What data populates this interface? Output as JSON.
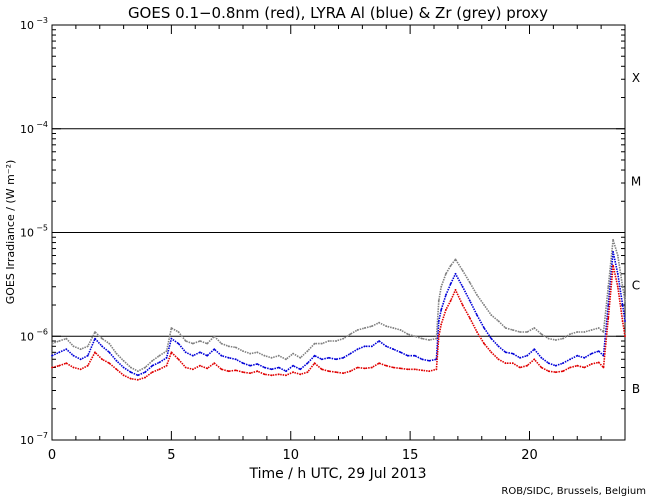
{
  "chart_data": {
    "type": "line",
    "title": "GOES 0.1−0.8nm (red), LYRA Al (blue) & Zr (grey) proxy",
    "xlabel": "Time / h UTC, 29 Jul 2013",
    "ylabel": "GOES Irradiance / (W m⁻²)",
    "xlim": [
      0,
      24
    ],
    "ylim_log10": [
      -7,
      -3
    ],
    "x_ticks": [
      0,
      5,
      10,
      15,
      20
    ],
    "x_tick_labels": [
      "0",
      "5",
      "10",
      "15",
      "20"
    ],
    "y_ticks_log10": [
      -7,
      -6,
      -5,
      -4,
      -3
    ],
    "y_tick_bases": [
      "10",
      "10",
      "10",
      "10",
      "10"
    ],
    "y_tick_exponents": [
      "−7",
      "−6",
      "−5",
      "−4",
      "−3"
    ],
    "flare_thresholds_log10": [
      -6,
      -5,
      -4
    ],
    "flare_classes": [
      {
        "label": "B",
        "center_log10": -6.5
      },
      {
        "label": "C",
        "center_log10": -5.5
      },
      {
        "label": "M",
        "center_log10": -4.5
      },
      {
        "label": "X",
        "center_log10": -3.5
      }
    ],
    "series": [
      {
        "name": "GOES 0.1-0.8nm",
        "color": "#e00000",
        "x": [
          0,
          0.3,
          0.6,
          0.9,
          1.2,
          1.5,
          1.8,
          2.1,
          2.4,
          2.7,
          3.0,
          3.3,
          3.6,
          3.9,
          4.2,
          4.5,
          4.8,
          5.0,
          5.3,
          5.6,
          5.9,
          6.2,
          6.5,
          6.8,
          7.1,
          7.4,
          7.7,
          8.0,
          8.3,
          8.6,
          8.9,
          9.2,
          9.5,
          9.8,
          10.1,
          10.4,
          10.7,
          11.0,
          11.3,
          11.6,
          11.9,
          12.2,
          12.5,
          12.8,
          13.1,
          13.4,
          13.7,
          14.0,
          14.3,
          14.6,
          14.9,
          15.2,
          15.5,
          15.8,
          16.1,
          16.2,
          16.3,
          16.5,
          16.7,
          16.9,
          17.2,
          17.5,
          17.8,
          18.1,
          18.4,
          18.7,
          19.0,
          19.3,
          19.6,
          19.9,
          20.2,
          20.5,
          20.8,
          21.1,
          21.4,
          21.7,
          22.0,
          22.3,
          22.6,
          22.9,
          23.1,
          23.3,
          23.5,
          23.7,
          23.9,
          24.0
        ],
        "y": [
          5e-07,
          5.2e-07,
          5.5e-07,
          5e-07,
          4.8e-07,
          5.2e-07,
          7e-07,
          6e-07,
          5.5e-07,
          4.8e-07,
          4.2e-07,
          3.9e-07,
          3.8e-07,
          4e-07,
          4.5e-07,
          4.8e-07,
          5.2e-07,
          7e-07,
          6e-07,
          5e-07,
          4.8e-07,
          5.2e-07,
          4.9e-07,
          5.5e-07,
          4.8e-07,
          4.6e-07,
          4.7e-07,
          4.5e-07,
          4.4e-07,
          4.6e-07,
          4.3e-07,
          4.2e-07,
          4.3e-07,
          4.2e-07,
          4.5e-07,
          4.3e-07,
          4.5e-07,
          5.5e-07,
          4.8e-07,
          4.6e-07,
          4.5e-07,
          4.4e-07,
          4.6e-07,
          5e-07,
          4.9e-07,
          5e-07,
          5.5e-07,
          5.2e-07,
          5e-07,
          4.9e-07,
          4.8e-07,
          4.8e-07,
          4.7e-07,
          4.6e-07,
          4.8e-07,
          1e-06,
          1.3e-06,
          1.8e-06,
          2.2e-06,
          2.8e-06,
          2e-06,
          1.5e-06,
          1.1e-06,
          8.5e-07,
          7e-07,
          6e-07,
          5.5e-07,
          5.5e-07,
          5e-07,
          5.2e-07,
          6e-07,
          5e-07,
          4.6e-07,
          4.5e-07,
          4.6e-07,
          5e-07,
          5.2e-07,
          5e-07,
          5.4e-07,
          5.6e-07,
          5e-07,
          1.5e-06,
          4.8e-06,
          3e-06,
          1.4e-06,
          1e-06
        ]
      },
      {
        "name": "LYRA Al proxy",
        "color": "#0000d8",
        "x": [
          0,
          0.3,
          0.6,
          0.9,
          1.2,
          1.5,
          1.8,
          2.1,
          2.4,
          2.7,
          3.0,
          3.3,
          3.6,
          3.9,
          4.2,
          4.5,
          4.8,
          5.0,
          5.3,
          5.6,
          5.9,
          6.2,
          6.5,
          6.8,
          7.1,
          7.4,
          7.7,
          8.0,
          8.3,
          8.6,
          8.9,
          9.2,
          9.5,
          9.8,
          10.1,
          10.4,
          10.7,
          11.0,
          11.3,
          11.6,
          11.9,
          12.2,
          12.5,
          12.8,
          13.1,
          13.4,
          13.7,
          14.0,
          14.3,
          14.6,
          14.9,
          15.2,
          15.5,
          15.8,
          16.1,
          16.2,
          16.3,
          16.5,
          16.7,
          16.9,
          17.2,
          17.5,
          17.8,
          18.1,
          18.4,
          18.7,
          19.0,
          19.3,
          19.6,
          19.9,
          20.2,
          20.5,
          20.8,
          21.1,
          21.4,
          21.7,
          22.0,
          22.3,
          22.6,
          22.9,
          23.1,
          23.3,
          23.5,
          23.7,
          23.9,
          24.0
        ],
        "y": [
          6.5e-07,
          7e-07,
          7.5e-07,
          6.5e-07,
          6e-07,
          6.5e-07,
          9.5e-07,
          8e-07,
          7e-07,
          5.8e-07,
          5e-07,
          4.5e-07,
          4.2e-07,
          4.5e-07,
          5.2e-07,
          5.6e-07,
          6.2e-07,
          9.5e-07,
          8.5e-07,
          7e-07,
          6.5e-07,
          7e-07,
          6.5e-07,
          7.5e-07,
          6.5e-07,
          6.2e-07,
          6e-07,
          5.5e-07,
          5.2e-07,
          5.4e-07,
          5e-07,
          4.8e-07,
          5e-07,
          4.6e-07,
          5.2e-07,
          4.8e-07,
          5.5e-07,
          6.5e-07,
          6e-07,
          6.2e-07,
          6e-07,
          6.2e-07,
          6.8e-07,
          7.5e-07,
          8e-07,
          8e-07,
          9e-07,
          8e-07,
          7.5e-07,
          7e-07,
          6.5e-07,
          6.5e-07,
          6e-07,
          5.8e-07,
          6e-07,
          1.4e-06,
          1.8e-06,
          2.5e-06,
          3.2e-06,
          4e-06,
          3e-06,
          2.2e-06,
          1.6e-06,
          1.2e-06,
          9.5e-07,
          8e-07,
          7e-07,
          6.8e-07,
          6.2e-07,
          6.5e-07,
          7.5e-07,
          6.2e-07,
          5.5e-07,
          5.2e-07,
          5.5e-07,
          6e-07,
          6.5e-07,
          6.2e-07,
          6.8e-07,
          7.2e-07,
          6.5e-07,
          2e-06,
          6.5e-06,
          4e-06,
          2e-06,
          1.4e-06
        ]
      },
      {
        "name": "LYRA Zr proxy",
        "color": "#808080",
        "x": [
          0,
          0.3,
          0.6,
          0.9,
          1.2,
          1.5,
          1.8,
          2.1,
          2.4,
          2.7,
          3.0,
          3.3,
          3.6,
          3.9,
          4.2,
          4.5,
          4.8,
          5.0,
          5.3,
          5.6,
          5.9,
          6.2,
          6.5,
          6.8,
          7.1,
          7.4,
          7.7,
          8.0,
          8.3,
          8.6,
          8.9,
          9.2,
          9.5,
          9.8,
          10.1,
          10.4,
          10.7,
          11.0,
          11.3,
          11.6,
          11.9,
          12.2,
          12.5,
          12.8,
          13.1,
          13.4,
          13.7,
          14.0,
          14.3,
          14.6,
          14.9,
          15.2,
          15.5,
          15.8,
          16.1,
          16.2,
          16.3,
          16.5,
          16.7,
          16.9,
          17.2,
          17.5,
          17.8,
          18.1,
          18.4,
          18.7,
          19.0,
          19.3,
          19.6,
          19.9,
          20.2,
          20.5,
          20.8,
          21.1,
          21.4,
          21.7,
          22.0,
          22.3,
          22.6,
          22.9,
          23.1,
          23.3,
          23.5,
          23.7,
          23.9,
          24.0
        ],
        "y": [
          8.5e-07,
          9e-07,
          9.5e-07,
          8e-07,
          7.5e-07,
          8e-07,
          1.1e-06,
          9.5e-07,
          8.5e-07,
          6.8e-07,
          5.8e-07,
          5e-07,
          4.6e-07,
          5e-07,
          5.8e-07,
          6.5e-07,
          7.2e-07,
          1.2e-06,
          1.1e-06,
          9e-07,
          8.5e-07,
          9e-07,
          8.5e-07,
          1e-06,
          8.5e-07,
          8e-07,
          7.8e-07,
          7.2e-07,
          6.8e-07,
          7e-07,
          6.5e-07,
          6.2e-07,
          6.5e-07,
          6e-07,
          6.8e-07,
          6.2e-07,
          7.2e-07,
          8.5e-07,
          8.5e-07,
          9e-07,
          9e-07,
          9.5e-07,
          1.05e-06,
          1.15e-06,
          1.2e-06,
          1.25e-06,
          1.35e-06,
          1.25e-06,
          1.2e-06,
          1.15e-06,
          1.05e-06,
          1e-06,
          9.5e-07,
          9.2e-07,
          9.5e-07,
          2.2e-06,
          3e-06,
          4e-06,
          4.8e-06,
          5.5e-06,
          4.3e-06,
          3.3e-06,
          2.5e-06,
          2e-06,
          1.6e-06,
          1.4e-06,
          1.2e-06,
          1.15e-06,
          1.1e-06,
          1.1e-06,
          1.2e-06,
          1.05e-06,
          9.5e-07,
          9.2e-07,
          9.5e-07,
          1.05e-06,
          1.1e-06,
          1.1e-06,
          1.15e-06,
          1.2e-06,
          1.1e-06,
          3e-06,
          8.5e-06,
          6e-06,
          3e-06,
          2.2e-06
        ]
      }
    ]
  },
  "footer": {
    "credit": "ROB/SIDC, Brussels, Belgium"
  }
}
